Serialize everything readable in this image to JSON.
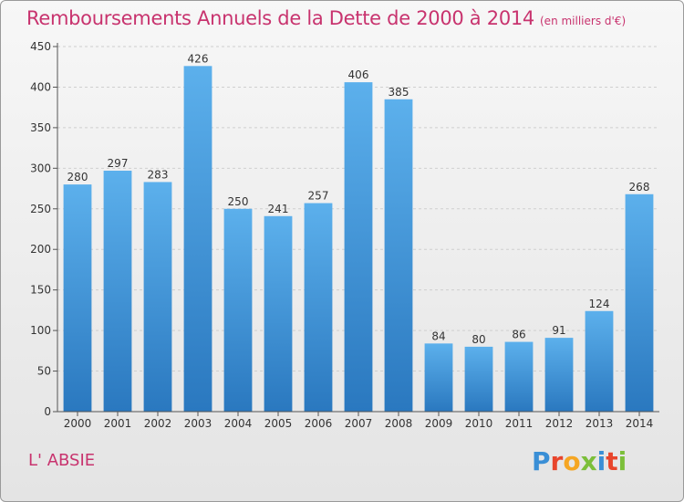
{
  "title": "Remboursements Annuels de la Dette de 2000 à 2014",
  "subtitle": "(en milliers d'€)",
  "commune": "L' ABSIE",
  "logo": {
    "text": "Proxiti",
    "colors": [
      "#3a8fd6",
      "#e8452c",
      "#f5a623",
      "#7cbf3a",
      "#3a8fd6",
      "#e8452c",
      "#7cbf3a"
    ]
  },
  "colors": {
    "accent": "#c8336e",
    "bar_top": "#5cb0ec",
    "bar_bottom": "#2a78bf"
  },
  "chart_data": {
    "type": "bar",
    "categories": [
      "2000",
      "2001",
      "2002",
      "2003",
      "2004",
      "2005",
      "2006",
      "2007",
      "2008",
      "2009",
      "2010",
      "2011",
      "2012",
      "2013",
      "2014"
    ],
    "values": [
      280,
      297,
      283,
      426,
      250,
      241,
      257,
      406,
      385,
      84,
      80,
      86,
      91,
      124,
      268
    ],
    "yticks": [
      0,
      50,
      100,
      150,
      200,
      250,
      300,
      350,
      400,
      450
    ],
    "ylim": [
      0,
      450
    ],
    "grid": true,
    "legend": "none"
  }
}
